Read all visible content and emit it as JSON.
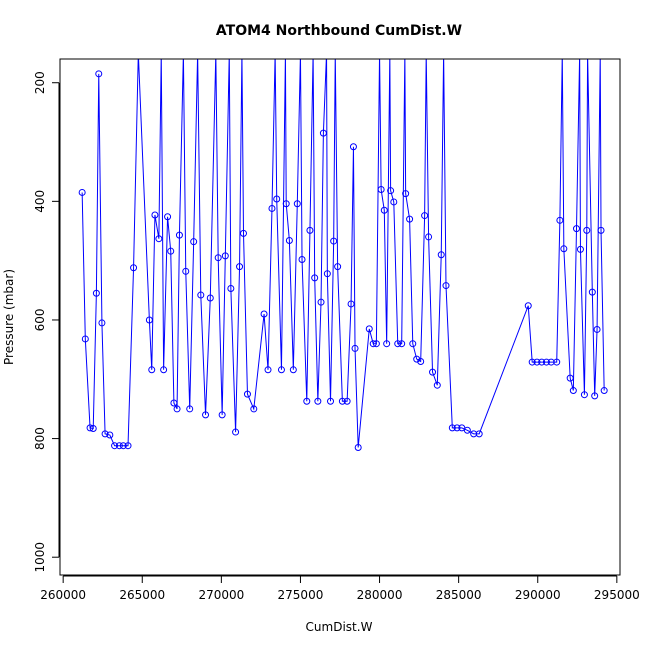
{
  "chart_data": {
    "type": "line",
    "title": "ATOM4 Northbound CumDist.W",
    "xlabel": "CumDist.W",
    "ylabel": "Pressure (mbar)",
    "xlim": [
      259800,
      295200
    ],
    "ylim": [
      1030,
      160
    ],
    "y_reversed": true,
    "grid": false,
    "x_ticks": [
      {
        "value": 260000,
        "label": "260000"
      },
      {
        "value": 265000,
        "label": "265000"
      },
      {
        "value": 270000,
        "label": "270000"
      },
      {
        "value": 275000,
        "label": "275000"
      },
      {
        "value": 280000,
        "label": "280000"
      },
      {
        "value": 285000,
        "label": "285000"
      },
      {
        "value": 290000,
        "label": "290000"
      },
      {
        "value": 295000,
        "label": "295000"
      }
    ],
    "y_ticks": [
      {
        "value": 200,
        "label": "200"
      },
      {
        "value": 400,
        "label": "400"
      },
      {
        "value": 600,
        "label": "600"
      },
      {
        "value": 800,
        "label": "800"
      },
      {
        "value": 1000,
        "label": "1000"
      }
    ],
    "series": [
      {
        "color": "#0000ff",
        "marker": "open-circle",
        "points": [
          [
            261200,
            385
          ],
          [
            261400,
            632
          ],
          [
            261700,
            782
          ],
          [
            261900,
            783
          ],
          [
            262100,
            555
          ],
          [
            262250,
            185
          ],
          [
            262450,
            605
          ],
          [
            262650,
            792
          ],
          [
            262950,
            794
          ],
          [
            263250,
            812
          ],
          [
            263550,
            812
          ],
          [
            263800,
            812
          ],
          [
            264100,
            812
          ],
          [
            264450,
            512
          ],
          [
            264750,
            150
          ],
          [
            265450,
            600
          ],
          [
            265600,
            684
          ],
          [
            265800,
            423
          ],
          [
            266050,
            463
          ],
          [
            266200,
            150
          ],
          [
            266350,
            684
          ],
          [
            266600,
            426
          ],
          [
            266800,
            484
          ],
          [
            267000,
            740
          ],
          [
            267200,
            750
          ],
          [
            267350,
            457
          ],
          [
            267600,
            150
          ],
          [
            267750,
            518
          ],
          [
            268000,
            750
          ],
          [
            268250,
            468
          ],
          [
            268500,
            150
          ],
          [
            268700,
            558
          ],
          [
            269000,
            760
          ],
          [
            269300,
            563
          ],
          [
            269650,
            150
          ],
          [
            269800,
            495
          ],
          [
            270050,
            760
          ],
          [
            270250,
            492
          ],
          [
            270500,
            150
          ],
          [
            270600,
            547
          ],
          [
            270900,
            789
          ],
          [
            271150,
            510
          ],
          [
            271300,
            150
          ],
          [
            271400,
            454
          ],
          [
            271650,
            725
          ],
          [
            272050,
            750
          ],
          [
            272700,
            590
          ],
          [
            272950,
            684
          ],
          [
            273200,
            412
          ],
          [
            273400,
            150
          ],
          [
            273500,
            396
          ],
          [
            273800,
            684
          ],
          [
            274050,
            150
          ],
          [
            274100,
            404
          ],
          [
            274300,
            466
          ],
          [
            274550,
            684
          ],
          [
            274800,
            404
          ],
          [
            275000,
            150
          ],
          [
            275100,
            498
          ],
          [
            275400,
            737
          ],
          [
            275600,
            449
          ],
          [
            275800,
            150
          ],
          [
            275900,
            529
          ],
          [
            276100,
            737
          ],
          [
            276300,
            570
          ],
          [
            276450,
            285
          ],
          [
            276650,
            150
          ],
          [
            276700,
            522
          ],
          [
            276900,
            737
          ],
          [
            277100,
            467
          ],
          [
            277200,
            150
          ],
          [
            277350,
            510
          ],
          [
            277650,
            737
          ],
          [
            277950,
            737
          ],
          [
            278200,
            573
          ],
          [
            278350,
            308
          ],
          [
            278450,
            648
          ],
          [
            278650,
            815
          ],
          [
            279350,
            615
          ],
          [
            279600,
            640
          ],
          [
            279800,
            640
          ],
          [
            280000,
            150
          ],
          [
            280100,
            380
          ],
          [
            280300,
            415
          ],
          [
            280450,
            640
          ],
          [
            280650,
            150
          ],
          [
            280700,
            382
          ],
          [
            280900,
            401
          ],
          [
            281150,
            640
          ],
          [
            281400,
            640
          ],
          [
            281600,
            150
          ],
          [
            281650,
            387
          ],
          [
            281900,
            430
          ],
          [
            282100,
            640
          ],
          [
            282350,
            666
          ],
          [
            282600,
            670
          ],
          [
            282850,
            424
          ],
          [
            282950,
            150
          ],
          [
            283100,
            460
          ],
          [
            283350,
            688
          ],
          [
            283650,
            710
          ],
          [
            283900,
            490
          ],
          [
            284050,
            150
          ],
          [
            284200,
            542
          ],
          [
            284600,
            782
          ],
          [
            284900,
            782
          ],
          [
            285200,
            782
          ],
          [
            285550,
            786
          ],
          [
            285950,
            792
          ],
          [
            286300,
            792
          ],
          [
            289400,
            576
          ],
          [
            289650,
            671
          ],
          [
            289950,
            671
          ],
          [
            290250,
            671
          ],
          [
            290550,
            671
          ],
          [
            290850,
            671
          ],
          [
            291200,
            671
          ],
          [
            291400,
            432
          ],
          [
            291550,
            150
          ],
          [
            291650,
            480
          ],
          [
            292050,
            698
          ],
          [
            292250,
            719
          ],
          [
            292450,
            446
          ],
          [
            292650,
            150
          ],
          [
            292700,
            481
          ],
          [
            292950,
            726
          ],
          [
            293100,
            449
          ],
          [
            293150,
            150
          ],
          [
            293450,
            553
          ],
          [
            293600,
            728
          ],
          [
            293750,
            616
          ],
          [
            293950,
            150
          ],
          [
            294000,
            449
          ],
          [
            294200,
            719
          ]
        ]
      }
    ]
  }
}
